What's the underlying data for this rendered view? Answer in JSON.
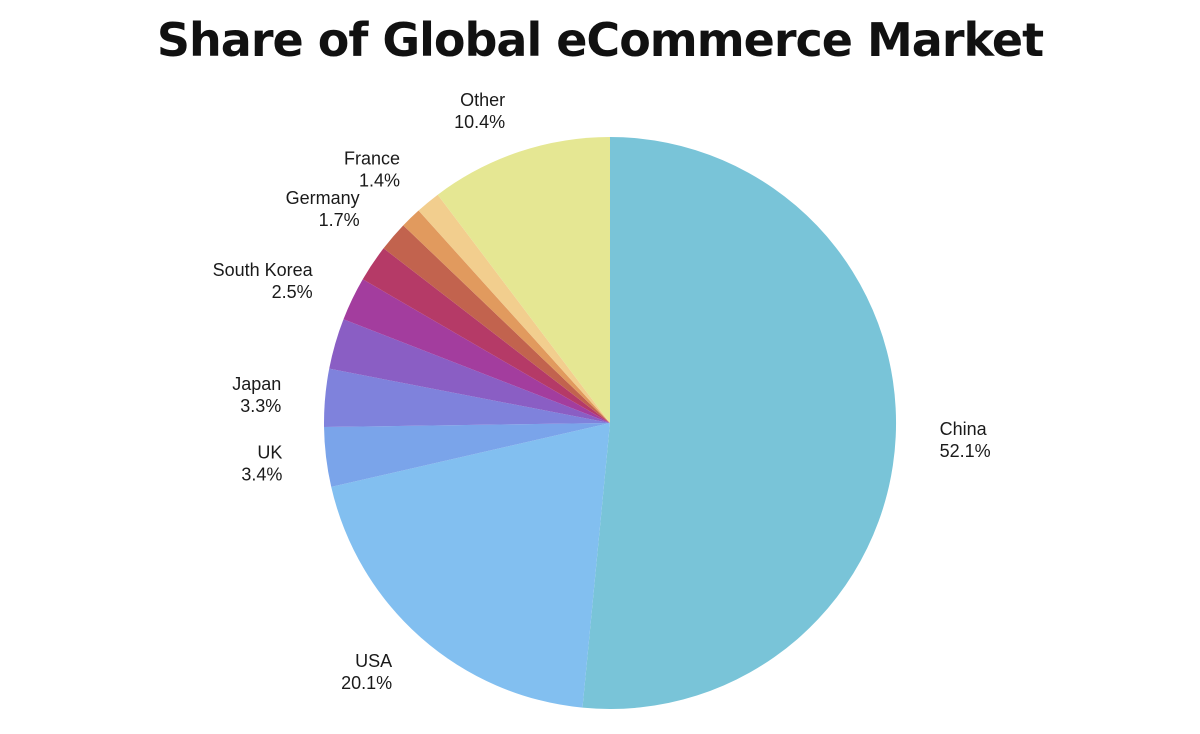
{
  "chart_data": {
    "type": "pie",
    "title": "Share of Global eCommerce Market",
    "slices": [
      {
        "label": "China",
        "value": 52.1,
        "display": "52.1%",
        "color": "#79c4d8"
      },
      {
        "label": "USA",
        "value": 20.1,
        "display": "20.1%",
        "color": "#82bff0"
      },
      {
        "label": "UK",
        "value": 3.4,
        "display": "3.4%",
        "color": "#7aa4ea"
      },
      {
        "label": "Japan",
        "value": 3.3,
        "display": "3.3%",
        "color": "#7f82dc"
      },
      {
        "label": "",
        "value": 2.9,
        "display": "",
        "color": "#8a5ec4"
      },
      {
        "label": "South Korea",
        "value": 2.5,
        "display": "2.5%",
        "color": "#a33d9e"
      },
      {
        "label": "",
        "value": 2.1,
        "display": "",
        "color": "#b53a67"
      },
      {
        "label": "Germany",
        "value": 1.7,
        "display": "1.7%",
        "color": "#c2634e"
      },
      {
        "label": "",
        "value": 1.2,
        "display": "",
        "color": "#e19a5e"
      },
      {
        "label": "France",
        "value": 1.4,
        "display": "1.4%",
        "color": "#f2ce8e"
      },
      {
        "label": "Other",
        "value": 10.4,
        "display": "10.4%",
        "color": "#e5e793"
      }
    ]
  }
}
